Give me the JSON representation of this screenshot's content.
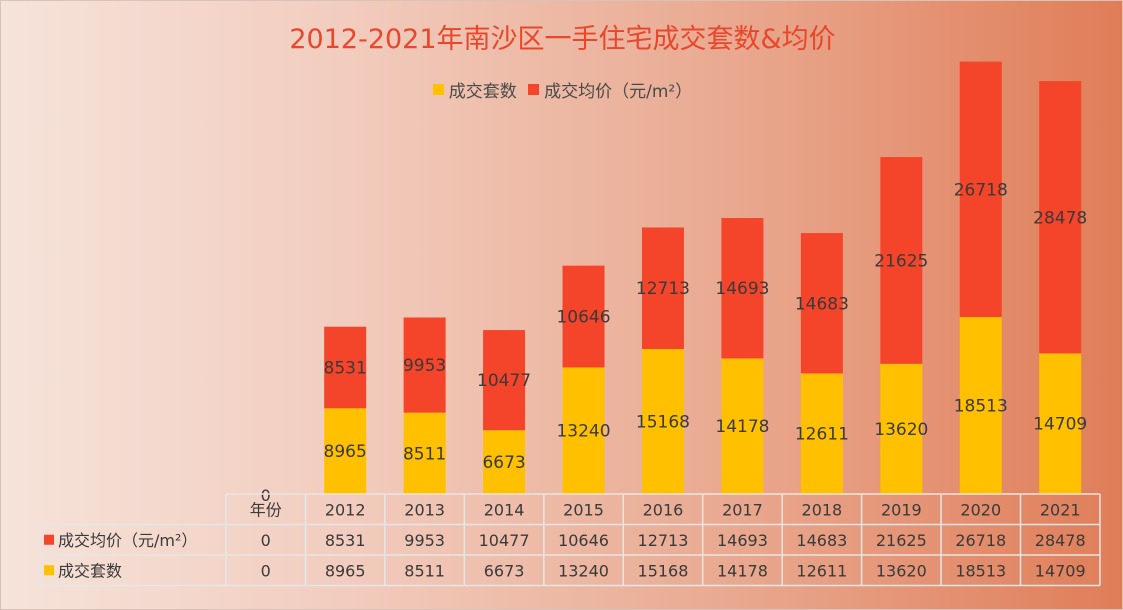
{
  "colors": {
    "units": "#ffc000",
    "price": "#f4452a",
    "title": "#e8472b",
    "label": "#3a3a3a",
    "grid": "#e6e6e6"
  },
  "chart_data": {
    "type": "bar",
    "stacked": true,
    "title": "2012-2021年南沙区一手住宅成交套数&均价",
    "legend_position": "top-center",
    "xlabel": "",
    "ylabel": "",
    "ylim": [
      0,
      50000
    ],
    "grid": false,
    "leading_category": "年份",
    "leading_category_values": {
      "price": 0,
      "units": 0
    },
    "categories": [
      "2012",
      "2013",
      "2014",
      "2015",
      "2016",
      "2017",
      "2018",
      "2019",
      "2020",
      "2021"
    ],
    "series": [
      {
        "key": "units",
        "name": "成交套数",
        "values": [
          8965,
          8511,
          6673,
          13240,
          15168,
          14178,
          12611,
          13620,
          18513,
          14709
        ]
      },
      {
        "key": "price",
        "name": "成交均价（元/m²）",
        "values": [
          8531,
          9953,
          10477,
          10646,
          12713,
          14693,
          14683,
          21625,
          26718,
          28478
        ]
      }
    ]
  }
}
